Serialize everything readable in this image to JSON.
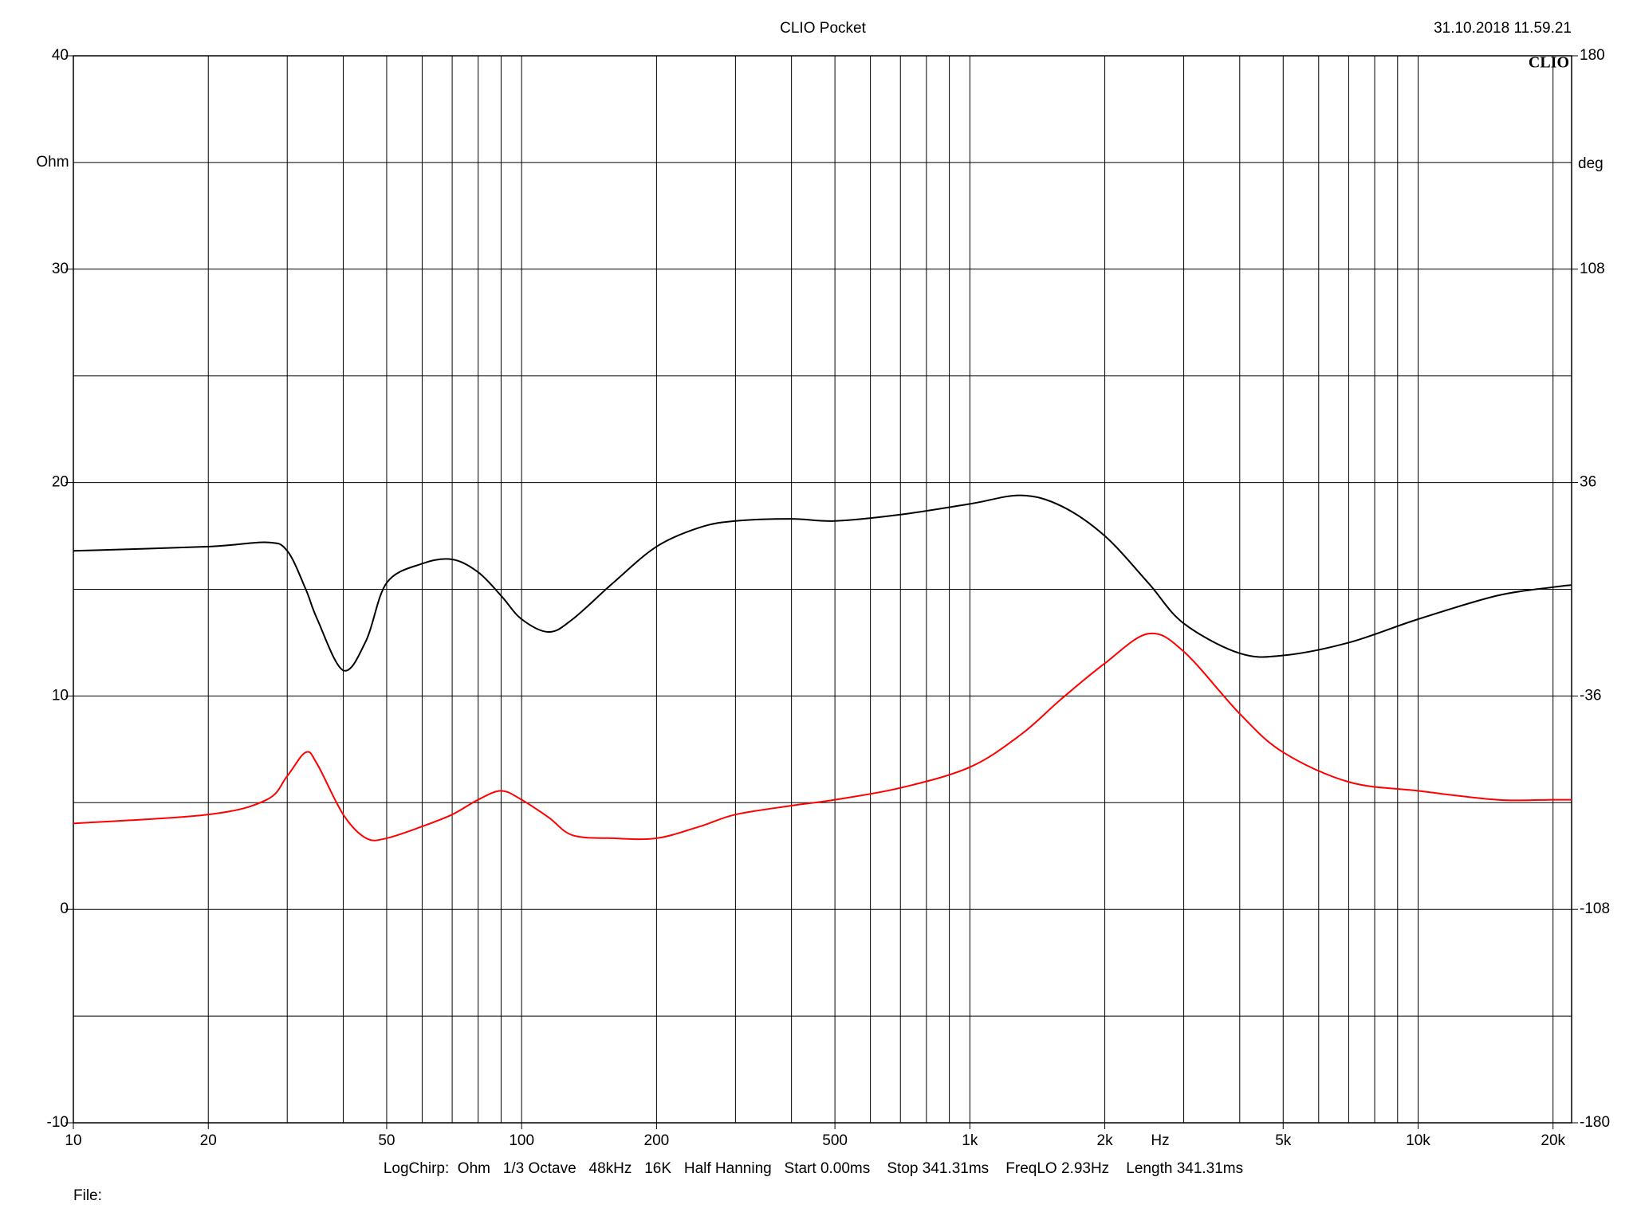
{
  "chart_data": {
    "type": "line",
    "title": "CLIO Pocket",
    "timestamp": "31.10.2018 11.59.21",
    "logo": "CLIO",
    "ylabel": "Ohm",
    "y2label": "deg",
    "xlabel": "Hz",
    "footer": "LogChirp:  Ohm   1/3 Octave   48kHz   16K   Half Hanning   Start 0.00ms    Stop 341.31ms    FreqLO 2.93Hz    Length 341.31ms",
    "file_label": "File:",
    "xscale": "log",
    "grid": true,
    "xlim": [
      10,
      22000
    ],
    "xticks": [
      10,
      20,
      50,
      100,
      200,
      500,
      {
        "value": 1000,
        "label": "1k"
      },
      {
        "value": 2000,
        "label": "2k"
      },
      {
        "value": 5000,
        "label": "5k"
      },
      {
        "value": 10000,
        "label": "10k"
      },
      {
        "value": 20000,
        "label": "20k"
      }
    ],
    "minor_xticks": [
      30,
      40,
      60,
      70,
      80,
      90,
      300,
      400,
      600,
      700,
      800,
      900,
      3000,
      4000,
      6000,
      7000,
      8000,
      9000
    ],
    "ylim": [
      -10,
      40
    ],
    "yticks": [
      -10,
      0,
      10,
      20,
      30,
      40
    ],
    "minor_yticks": [
      -5,
      5,
      15,
      25,
      35
    ],
    "y2lim": [
      -180,
      180
    ],
    "y2ticks": [
      -180,
      -108,
      -36,
      36,
      108,
      180
    ],
    "x": [
      10,
      20,
      27,
      30,
      33,
      35,
      40,
      45,
      50,
      60,
      70,
      80,
      90,
      100,
      115,
      130,
      160,
      200,
      250,
      300,
      400,
      500,
      700,
      1000,
      1300,
      1600,
      2000,
      2500,
      3000,
      4000,
      5000,
      7000,
      10000,
      15000,
      20000,
      22000
    ],
    "series": [
      {
        "color": "#000000",
        "values": [
          16.8,
          17.0,
          17.2,
          16.8,
          15.0,
          13.6,
          11.2,
          12.6,
          15.3,
          16.2,
          16.4,
          15.8,
          14.7,
          13.6,
          13.0,
          13.6,
          15.3,
          17.0,
          17.9,
          18.2,
          18.3,
          18.2,
          18.5,
          19.0,
          19.4,
          18.9,
          17.5,
          15.3,
          13.4,
          12.0,
          11.9,
          12.5,
          13.6,
          14.7,
          15.1,
          15.2
        ]
      },
      {
        "color": "#ff0000",
        "axis": "y2",
        "values": [
          -79,
          -76,
          -71,
          -63,
          -55,
          -59,
          -76,
          -84,
          -84,
          -80,
          -76,
          -71,
          -68,
          -71,
          -77,
          -83,
          -84,
          -84,
          -80,
          -76,
          -73,
          -71,
          -67,
          -60,
          -49,
          -37,
          -25,
          -15,
          -21,
          -42,
          -55,
          -65,
          -68,
          -71,
          -71,
          -71
        ]
      }
    ]
  }
}
